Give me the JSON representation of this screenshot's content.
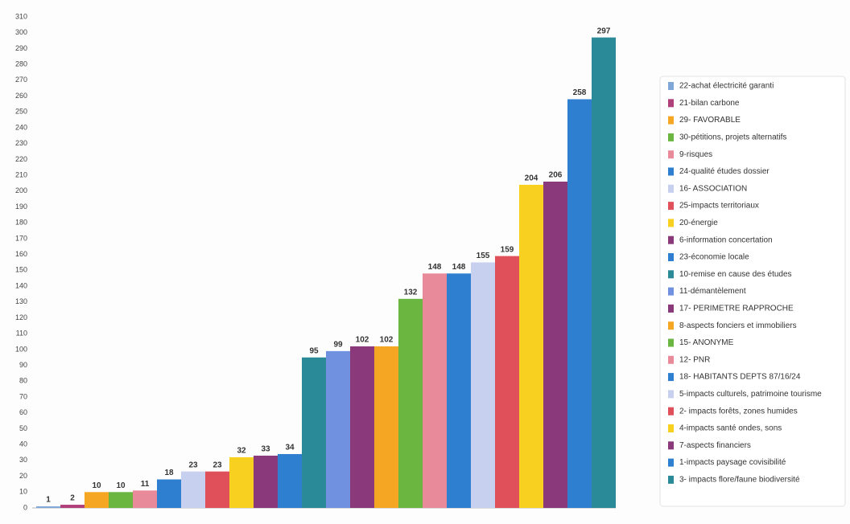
{
  "chart_data": {
    "type": "bar",
    "categories": [
      "22-achat électricité garanti",
      "21-bilan carbone",
      "29- FAVORABLE",
      "30-pétitions, projets alternatifs",
      "9-risques",
      "24-qualité études dossier",
      "16- ASSOCIATION",
      "25-impacts territoriaux",
      "20-énergie",
      "6-information concertation",
      "23-économie locale",
      "10-remise en cause des études",
      "11-démantèlement",
      "17- PERIMETRE RAPPROCHE",
      "8-aspects fonciers et immobiliers",
      "15- ANONYME",
      "12- PNR",
      "18- HABITANTS DEPTS 87/16/24",
      "5-impacts culturels, patrimoine tourisme",
      "2- impacts forêts, zones humides",
      "4-impacts santé ondes, sons",
      "7-aspects financiers",
      "1-impacts paysage covisibilité",
      "3- impacts flore/faune biodiversité"
    ],
    "values": [
      1,
      2,
      10,
      10,
      11,
      18,
      23,
      23,
      32,
      33,
      34,
      95,
      99,
      102,
      102,
      132,
      148,
      148,
      155,
      159,
      204,
      206,
      258,
      297
    ],
    "colors": [
      "#7fa8d8",
      "#b0407a",
      "#f5a623",
      "#6ab640",
      "#e98a9a",
      "#2f7fd0",
      "#c8d0f0",
      "#e0505a",
      "#f8d020",
      "#8a3a7a",
      "#2f7fd0",
      "#2a8a98",
      "#7090e0",
      "#8a3a7a",
      "#f5a623",
      "#6ab640",
      "#e98a9a",
      "#2f7fd0",
      "#c8d0f0",
      "#e0505a",
      "#f8d020",
      "#8a3a7a",
      "#2f7fd0",
      "#2a8a98"
    ],
    "ylim": [
      0,
      310
    ],
    "yticks": [
      0,
      10,
      20,
      30,
      40,
      50,
      60,
      70,
      80,
      90,
      100,
      110,
      120,
      130,
      140,
      150,
      160,
      170,
      180,
      190,
      200,
      210,
      220,
      230,
      240,
      250,
      260,
      270,
      280,
      290,
      300,
      310
    ],
    "grid": false
  }
}
